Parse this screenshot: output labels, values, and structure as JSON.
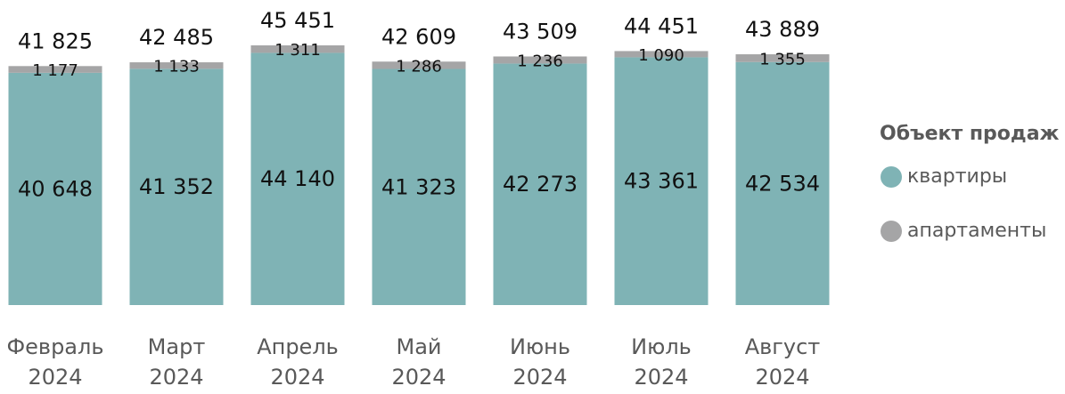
{
  "chart_data": {
    "type": "stacked_bar",
    "categories": [
      "Февраль 2024",
      "Март 2024",
      "Апрель 2024",
      "Май 2024",
      "Июнь 2024",
      "Июль 2024",
      "Август 2024"
    ],
    "series": [
      {
        "name": "квартиры",
        "color": "#7fb3b5",
        "values": [
          40648,
          41352,
          44140,
          41323,
          42273,
          43361,
          42534
        ],
        "value_labels": [
          "40 648",
          "41 352",
          "44 140",
          "41 323",
          "42 273",
          "43 361",
          "42 534"
        ]
      },
      {
        "name": "апартаменты",
        "color": "#a5a5a6",
        "values": [
          1177,
          1133,
          1311,
          1286,
          1236,
          1090,
          1355
        ],
        "value_labels": [
          "1 177",
          "1 133",
          "1 311",
          "1 286",
          "1 236",
          "1 090",
          "1 355"
        ]
      }
    ],
    "totals": [
      41825,
      42485,
      45451,
      42609,
      43509,
      44451,
      43889
    ],
    "total_labels": [
      "41 825",
      "42 485",
      "45 451",
      "42 609",
      "43 509",
      "44 451",
      "43 889"
    ],
    "legend_title": "Объект продаж",
    "legend_position": "right"
  }
}
